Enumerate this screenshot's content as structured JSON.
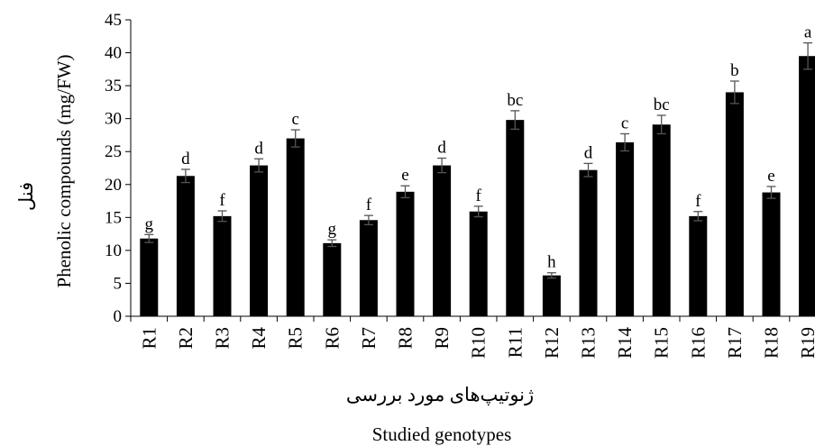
{
  "chart_data": {
    "type": "bar",
    "title": "",
    "ylabel": "Phenolic compounds (mg/FW)",
    "ylabel_fa": "فنل",
    "xlabel_fa": "ژنوتیپ‌های مورد بررسی",
    "xlabel": "Studied genotypes",
    "ylim": [
      0,
      45
    ],
    "yticks": [
      0,
      5,
      10,
      15,
      20,
      25,
      30,
      35,
      40,
      45
    ],
    "grid": false,
    "legend": "none",
    "bar_color": "#000000",
    "error_color": "#555555",
    "categories": [
      "R1",
      "R2",
      "R3",
      "R4",
      "R5",
      "R6",
      "R7",
      "R8",
      "R9",
      "R10",
      "R11",
      "R12",
      "R13",
      "R14",
      "R15",
      "R16",
      "R17",
      "R18",
      "R19"
    ],
    "values": [
      11.8,
      21.3,
      15.2,
      22.9,
      27.0,
      11.1,
      14.6,
      18.9,
      22.9,
      15.9,
      29.8,
      6.2,
      22.2,
      26.4,
      29.1,
      15.2,
      34.0,
      18.8,
      39.5
    ],
    "errors": [
      0.6,
      1.0,
      0.8,
      1.0,
      1.3,
      0.5,
      0.7,
      0.9,
      1.1,
      0.8,
      1.4,
      0.4,
      1.0,
      1.3,
      1.4,
      0.7,
      1.7,
      0.9,
      2.0
    ],
    "letters": [
      "g",
      "d",
      "f",
      "d",
      "c",
      "g",
      "f",
      "e",
      "d",
      "f",
      "bc",
      "h",
      "d",
      "c",
      "bc",
      "f",
      "b",
      "e",
      "a"
    ]
  }
}
